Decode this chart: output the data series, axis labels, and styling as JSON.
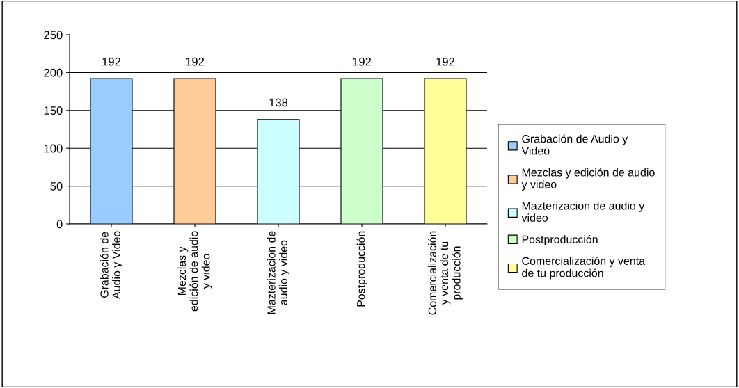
{
  "chart_data": {
    "type": "bar",
    "categories": [
      "Grabación de\nAudio y Video",
      "Mezclas y\nedición de audio\ny video",
      "Mazterizacion de\naudio y video",
      "Postproducción",
      "Comercialización\ny venta de tu\nproducción"
    ],
    "series": [
      {
        "name": "Grabación de Audio y\nVideo",
        "color": "#99ccff",
        "values": [
          192,
          null,
          null,
          null,
          null
        ]
      },
      {
        "name": "Mezclas y edición de audio\ny video",
        "color": "#ffcc99",
        "values": [
          null,
          192,
          null,
          null,
          null
        ]
      },
      {
        "name": "Mazterizacion de audio y\nvideo",
        "color": "#ccffff",
        "values": [
          null,
          null,
          138,
          null,
          null
        ]
      },
      {
        "name": "Postproducción",
        "color": "#ccffcc",
        "values": [
          null,
          null,
          null,
          192,
          null
        ]
      },
      {
        "name": "Comercialización y venta\nde tu producción",
        "color": "#ffff99",
        "values": [
          null,
          null,
          null,
          null,
          192
        ]
      }
    ],
    "ylim": [
      0,
      250
    ],
    "yticks": [
      0,
      50,
      100,
      150,
      200,
      250
    ],
    "grid": "y",
    "legend": "right",
    "data_labels": true
  }
}
